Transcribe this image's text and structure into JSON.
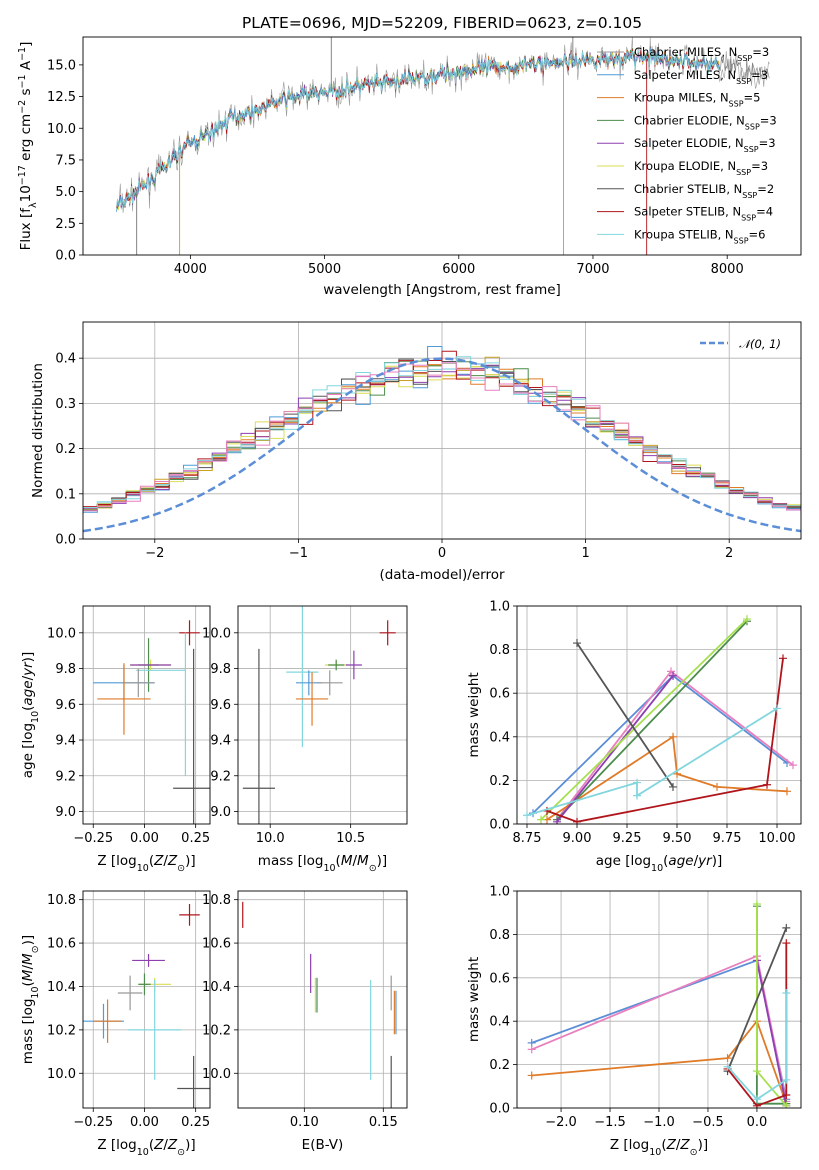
{
  "colors": {
    "Chabrier MILES": "#999999",
    "Salpeter MILES": "#4f9bd8",
    "Kroupa MILES": "#e07b28",
    "Chabrier ELODIE": "#4c8c4c",
    "Salpeter ELODIE": "#8e3fb0",
    "Kroupa ELODIE": "#d9dd55",
    "Chabrier STELIB": "#555555",
    "Salpeter STELIB": "#b0151c",
    "Kroupa STELIB": "#82d6de",
    "gauss": "#5b8ed6",
    "miles_salpeter_panel": "#5b8ed6",
    "miles_chabrier_pts": "#e87fbf",
    "elodie_k_pts": "#a6e050"
  },
  "spectrum_legend": [
    {
      "base": "Chabrier MILES, N",
      "sub": "SSP",
      "tail": "=3"
    },
    {
      "base": "Salpeter MILES, N",
      "sub": "SSP",
      "tail": "=3"
    },
    {
      "base": "Kroupa MILES, N",
      "sub": "SSP",
      "tail": "=5"
    },
    {
      "base": "Chabrier ELODIE, N",
      "sub": "SSP",
      "tail": "=3"
    },
    {
      "base": "Salpeter ELODIE, N",
      "sub": "SSP",
      "tail": "=3"
    },
    {
      "base": "Kroupa ELODIE, N",
      "sub": "SSP",
      "tail": "=3"
    },
    {
      "base": "Chabrier STELIB, N",
      "sub": "SSP",
      "tail": "=2"
    },
    {
      "base": "Salpeter STELIB, N",
      "sub": "SSP",
      "tail": "=4"
    },
    {
      "base": "Kroupa STELIB, N",
      "sub": "SSP",
      "tail": "=6"
    }
  ],
  "chart_data": [
    {
      "type": "line",
      "title": "PLATE=0696, MJD=52209, FIBERID=0623, z=0.105",
      "xlabel": "wavelength [Angstrom, rest frame]",
      "ylabel": "Flux [fλ10⁻¹⁷ erg cm⁻² s⁻¹ A⁻¹]",
      "xlim": [
        3200,
        8550
      ],
      "ylim": [
        0,
        17.2
      ],
      "xticks": [
        4000,
        5000,
        6000,
        7000,
        8000
      ],
      "yticks": [
        0.0,
        2.5,
        5.0,
        7.5,
        10.0,
        12.5,
        15.0
      ],
      "continuum_points": [
        [
          3450,
          3.8
        ],
        [
          3600,
          5.0
        ],
        [
          3800,
          6.8
        ],
        [
          3950,
          8.5
        ],
        [
          4100,
          9.3
        ],
        [
          4300,
          10.8
        ],
        [
          4500,
          11.5
        ],
        [
          4700,
          12.3
        ],
        [
          4900,
          12.7
        ],
        [
          5100,
          13.0
        ],
        [
          5300,
          13.4
        ],
        [
          5500,
          13.6
        ],
        [
          5700,
          14.0
        ],
        [
          5900,
          14.3
        ],
        [
          6100,
          14.6
        ],
        [
          6300,
          14.8
        ],
        [
          6500,
          15.0
        ],
        [
          6700,
          15.2
        ],
        [
          6900,
          15.4
        ],
        [
          7100,
          15.5
        ],
        [
          7300,
          15.6
        ],
        [
          7500,
          15.4
        ],
        [
          7700,
          15.3
        ],
        [
          7900,
          15.0
        ],
        [
          8100,
          14.6
        ],
        [
          8300,
          14.3
        ]
      ],
      "spikes": [
        [
          3600,
          0
        ],
        [
          3920,
          0
        ],
        [
          5050,
          17.2
        ],
        [
          6780,
          0
        ],
        [
          6850,
          17.2
        ],
        [
          7400,
          0
        ]
      ]
    },
    {
      "type": "line",
      "xlabel": "(data-model)/error",
      "ylabel": "Normed distribution",
      "xlim": [
        -2.5,
        2.5
      ],
      "ylim": [
        0,
        0.48
      ],
      "xticks": [
        -2,
        -1,
        0,
        1,
        2
      ],
      "yticks": [
        0.0,
        0.1,
        0.2,
        0.3,
        0.4
      ],
      "legend": "𝒩(0, 1)",
      "legend_position": "top-right",
      "bin_width": 0.1
    },
    {
      "type": "scatter",
      "xlabel": "Z [log10(Z/Z⊙)]",
      "ylabel": "age  [log10(age/yr)]",
      "xlim": [
        -0.3,
        0.32
      ],
      "ylim": [
        8.93,
        10.15
      ],
      "xticks": [
        -0.25,
        0.0,
        0.25
      ],
      "yticks": [
        9.0,
        9.2,
        9.4,
        9.6,
        9.8,
        10.0
      ],
      "points": [
        {
          "series": "Salpeter STELIB",
          "x": 0.22,
          "y": 10.0,
          "xerr": 0.05,
          "yerr": 0.07
        },
        {
          "series": "Kroupa ELODIE",
          "x": 0.03,
          "y": 9.82,
          "xerr": 0.1,
          "yerr": 0.03
        },
        {
          "series": "Chabrier ELODIE",
          "x": 0.02,
          "y": 9.82,
          "xerr": 0.05,
          "yerr": 0.15
        },
        {
          "series": "Salpeter ELODIE",
          "x": 0.03,
          "y": 9.82,
          "xerr": 0.1,
          "yerr": 0.0
        },
        {
          "series": "Kroupa STELIB",
          "x": 0.08,
          "y": 9.79,
          "xerr": 0.12,
          "yerr": 0.0
        },
        {
          "series": "Salpeter MILES",
          "x": -0.1,
          "y": 9.72,
          "xerr": 0.15,
          "yerr": 0.1
        },
        {
          "series": "Chabrier MILES",
          "x": -0.03,
          "y": 9.72,
          "xerr": 0.08,
          "yerr": 0.08
        },
        {
          "series": "Kroupa MILES",
          "x": -0.1,
          "y": 9.63,
          "xerr": 0.13,
          "yerr": 0.2
        },
        {
          "series": "Kroupa STELIB",
          "x": 0.2,
          "y": 9.6,
          "xerr": 0.0,
          "yerr": 0.4
        },
        {
          "series": "Chabrier STELIB",
          "x": 0.24,
          "y": 9.13,
          "xerr": 0.1,
          "yerr": 0.78
        }
      ]
    },
    {
      "type": "scatter",
      "xlabel": "mass [log10(M/M⊙)]",
      "xlim": [
        9.8,
        10.85
      ],
      "ylim": [
        8.93,
        10.15
      ],
      "xticks": [
        10.0,
        10.5
      ],
      "yticks": [
        9.0,
        9.2,
        9.4,
        9.6,
        9.8,
        10.0
      ],
      "points": [
        {
          "series": "Salpeter STELIB",
          "x": 10.73,
          "y": 10.0,
          "xerr": 0.05,
          "yerr": 0.07
        },
        {
          "series": "Kroupa ELODIE",
          "x": 10.41,
          "y": 9.82,
          "xerr": 0.07,
          "yerr": 0.02
        },
        {
          "series": "Chabrier ELODIE",
          "x": 10.41,
          "y": 9.82,
          "xerr": 0.05,
          "yerr": 0.03
        },
        {
          "series": "Salpeter ELODIE",
          "x": 10.52,
          "y": 9.82,
          "xerr": 0.05,
          "yerr": 0.08
        },
        {
          "series": "Kroupa STELIB",
          "x": 10.2,
          "y": 9.78,
          "xerr": 0.1,
          "yerr": 0.42
        },
        {
          "series": "Salpeter MILES",
          "x": 10.24,
          "y": 9.72,
          "xerr": 0.08,
          "yerr": 0.07
        },
        {
          "series": "Chabrier MILES",
          "x": 10.37,
          "y": 9.72,
          "xerr": 0.08,
          "yerr": 0.07
        },
        {
          "series": "Kroupa MILES",
          "x": 10.26,
          "y": 9.63,
          "xerr": 0.1,
          "yerr": 0.15
        },
        {
          "series": "Chabrier STELIB",
          "x": 9.93,
          "y": 9.13,
          "xerr": 0.1,
          "yerr": 0.78
        }
      ]
    },
    {
      "type": "line",
      "xlabel": "age  [log10(age/yr)]",
      "ylabel": "mass weight",
      "xlim": [
        8.7,
        10.12
      ],
      "ylim": [
        0,
        1.0
      ],
      "xticks": [
        8.75,
        9.0,
        9.25,
        9.5,
        9.75,
        10.0
      ],
      "yticks": [
        0.0,
        0.2,
        0.4,
        0.6,
        0.8,
        1.0
      ],
      "series": [
        {
          "name": "Salpeter MILES",
          "x": [
            8.78,
            9.48,
            10.05
          ],
          "y": [
            0.05,
            0.68,
            0.28
          ]
        },
        {
          "name": "Chabrier MILES",
          "x": [
            8.9,
            9.47,
            10.08
          ],
          "y": [
            0.02,
            0.7,
            0.27
          ]
        },
        {
          "name": "Kroupa MILES",
          "x": [
            8.85,
            9.48,
            9.5,
            9.7,
            10.05
          ],
          "y": [
            0.02,
            0.4,
            0.23,
            0.17,
            0.15
          ]
        },
        {
          "name": "Chabrier ELODIE",
          "x": [
            8.9,
            9.85
          ],
          "y": [
            0.02,
            0.93
          ]
        },
        {
          "name": "Salpeter ELODIE",
          "x": [
            8.9,
            9.48
          ],
          "y": [
            0.01,
            0.68
          ]
        },
        {
          "name": "Kroupa ELODIE",
          "x": [
            8.82,
            9.85
          ],
          "y": [
            0.02,
            0.94
          ]
        },
        {
          "name": "Chabrier STELIB",
          "x": [
            9.0,
            9.48
          ],
          "y": [
            0.83,
            0.17
          ]
        },
        {
          "name": "Salpeter STELIB",
          "x": [
            8.85,
            9.0,
            9.95,
            10.03
          ],
          "y": [
            0.06,
            0.01,
            0.18,
            0.76
          ]
        },
        {
          "name": "Kroupa STELIB",
          "x": [
            8.75,
            9.3,
            9.3,
            10.0
          ],
          "y": [
            0.04,
            0.19,
            0.13,
            0.53
          ]
        }
      ]
    },
    {
      "type": "scatter",
      "xlabel": "Z [log10(Z/Z⊙)]",
      "ylabel": "mass [log10(M/M⊙)]",
      "xlim": [
        -0.3,
        0.32
      ],
      "ylim": [
        9.84,
        10.84
      ],
      "xticks": [
        -0.25,
        0.0,
        0.25
      ],
      "yticks": [
        10.0,
        10.2,
        10.4,
        10.6,
        10.8
      ],
      "points": [
        {
          "series": "Salpeter STELIB",
          "x": 0.22,
          "y": 10.73,
          "xerr": 0.05,
          "yerr": 0.05
        },
        {
          "series": "Salpeter ELODIE",
          "x": 0.02,
          "y": 10.52,
          "xerr": 0.08,
          "yerr": 0.03
        },
        {
          "series": "Kroupa ELODIE",
          "x": 0.05,
          "y": 10.41,
          "xerr": 0.08,
          "yerr": 0.03
        },
        {
          "series": "Chabrier ELODIE",
          "x": 0.0,
          "y": 10.41,
          "xerr": 0.03,
          "yerr": 0.05
        },
        {
          "series": "Chabrier MILES",
          "x": -0.07,
          "y": 10.37,
          "xerr": 0.06,
          "yerr": 0.08
        },
        {
          "series": "Salpeter MILES",
          "x": -0.2,
          "y": 10.24,
          "xerr": 0.1,
          "yerr": 0.08
        },
        {
          "series": "Kroupa MILES",
          "x": -0.18,
          "y": 10.24,
          "xerr": 0.07,
          "yerr": 0.1
        },
        {
          "series": "Kroupa STELIB",
          "x": 0.05,
          "y": 10.2,
          "xerr": 0.13,
          "yerr": 0.23
        },
        {
          "series": "Chabrier STELIB",
          "x": 0.24,
          "y": 9.93,
          "xerr": 0.08,
          "yerr": 0.15
        }
      ]
    },
    {
      "type": "scatter",
      "xlabel": "E(B-V)",
      "xlim": [
        0.058,
        0.165
      ],
      "ylim": [
        9.84,
        10.84
      ],
      "xticks": [
        0.1,
        0.15
      ],
      "yticks": [
        10.0,
        10.2,
        10.4,
        10.6,
        10.8
      ],
      "points": [
        {
          "series": "Salpeter STELIB",
          "x": 0.061,
          "y": 10.73,
          "yerr": 0.06
        },
        {
          "series": "Salpeter ELODIE",
          "x": 0.104,
          "y": 10.46,
          "yerr": 0.09
        },
        {
          "series": "Kroupa ELODIE",
          "x": 0.107,
          "y": 10.36,
          "yerr": 0.08
        },
        {
          "series": "Chabrier ELODIE",
          "x": 0.108,
          "y": 10.36,
          "yerr": 0.08
        },
        {
          "series": "Kroupa STELIB",
          "x": 0.142,
          "y": 10.2,
          "yerr": 0.23
        },
        {
          "series": "Chabrier MILES",
          "x": 0.155,
          "y": 10.37,
          "yerr": 0.08
        },
        {
          "series": "Kroupa MILES",
          "x": 0.157,
          "y": 10.28,
          "yerr": 0.1
        },
        {
          "series": "Salpeter MILES",
          "x": 0.158,
          "y": 10.28,
          "yerr": 0.1
        },
        {
          "series": "Chabrier STELIB",
          "x": 0.155,
          "y": 9.93,
          "yerr": 0.15
        }
      ]
    },
    {
      "type": "line",
      "xlabel": "Z [log10(Z/Z⊙)]",
      "ylabel": "mass weight",
      "xlim": [
        -2.45,
        0.45
      ],
      "ylim": [
        0,
        1.0
      ],
      "xticks": [
        -2.0,
        -1.5,
        -1.0,
        -0.5,
        0.0
      ],
      "yticks": [
        0.0,
        0.2,
        0.4,
        0.6,
        0.8,
        1.0
      ],
      "series": [
        {
          "name": "Salpeter MILES",
          "x": [
            -2.3,
            0.0,
            0.3
          ],
          "y": [
            0.3,
            0.68,
            0.04
          ]
        },
        {
          "name": "Chabrier MILES",
          "x": [
            -2.3,
            0.0,
            0.3
          ],
          "y": [
            0.27,
            0.7,
            0.03
          ]
        },
        {
          "name": "Kroupa MILES",
          "x": [
            -2.3,
            -0.3,
            0.0,
            0.3
          ],
          "y": [
            0.15,
            0.23,
            0.4,
            0.02
          ]
        },
        {
          "name": "Chabrier ELODIE",
          "x": [
            0.0,
            0.0,
            0.3
          ],
          "y": [
            0.93,
            0.02,
            0.02
          ]
        },
        {
          "name": "Salpeter ELODIE",
          "x": [
            0.0,
            0.3
          ],
          "y": [
            0.68,
            0.01
          ]
        },
        {
          "name": "Kroupa ELODIE",
          "x": [
            0.0,
            0.0,
            0.3
          ],
          "y": [
            0.94,
            0.17,
            0.01
          ]
        },
        {
          "name": "Chabrier STELIB",
          "x": [
            -0.3,
            0.3
          ],
          "y": [
            0.17,
            0.83
          ]
        },
        {
          "name": "Salpeter STELIB",
          "x": [
            -0.3,
            0.0,
            0.3,
            0.3
          ],
          "y": [
            0.18,
            0.01,
            0.06,
            0.76
          ]
        },
        {
          "name": "Kroupa STELIB",
          "x": [
            -0.3,
            0.0,
            0.3,
            0.3
          ],
          "y": [
            0.19,
            0.04,
            0.13,
            0.53
          ]
        }
      ]
    }
  ]
}
